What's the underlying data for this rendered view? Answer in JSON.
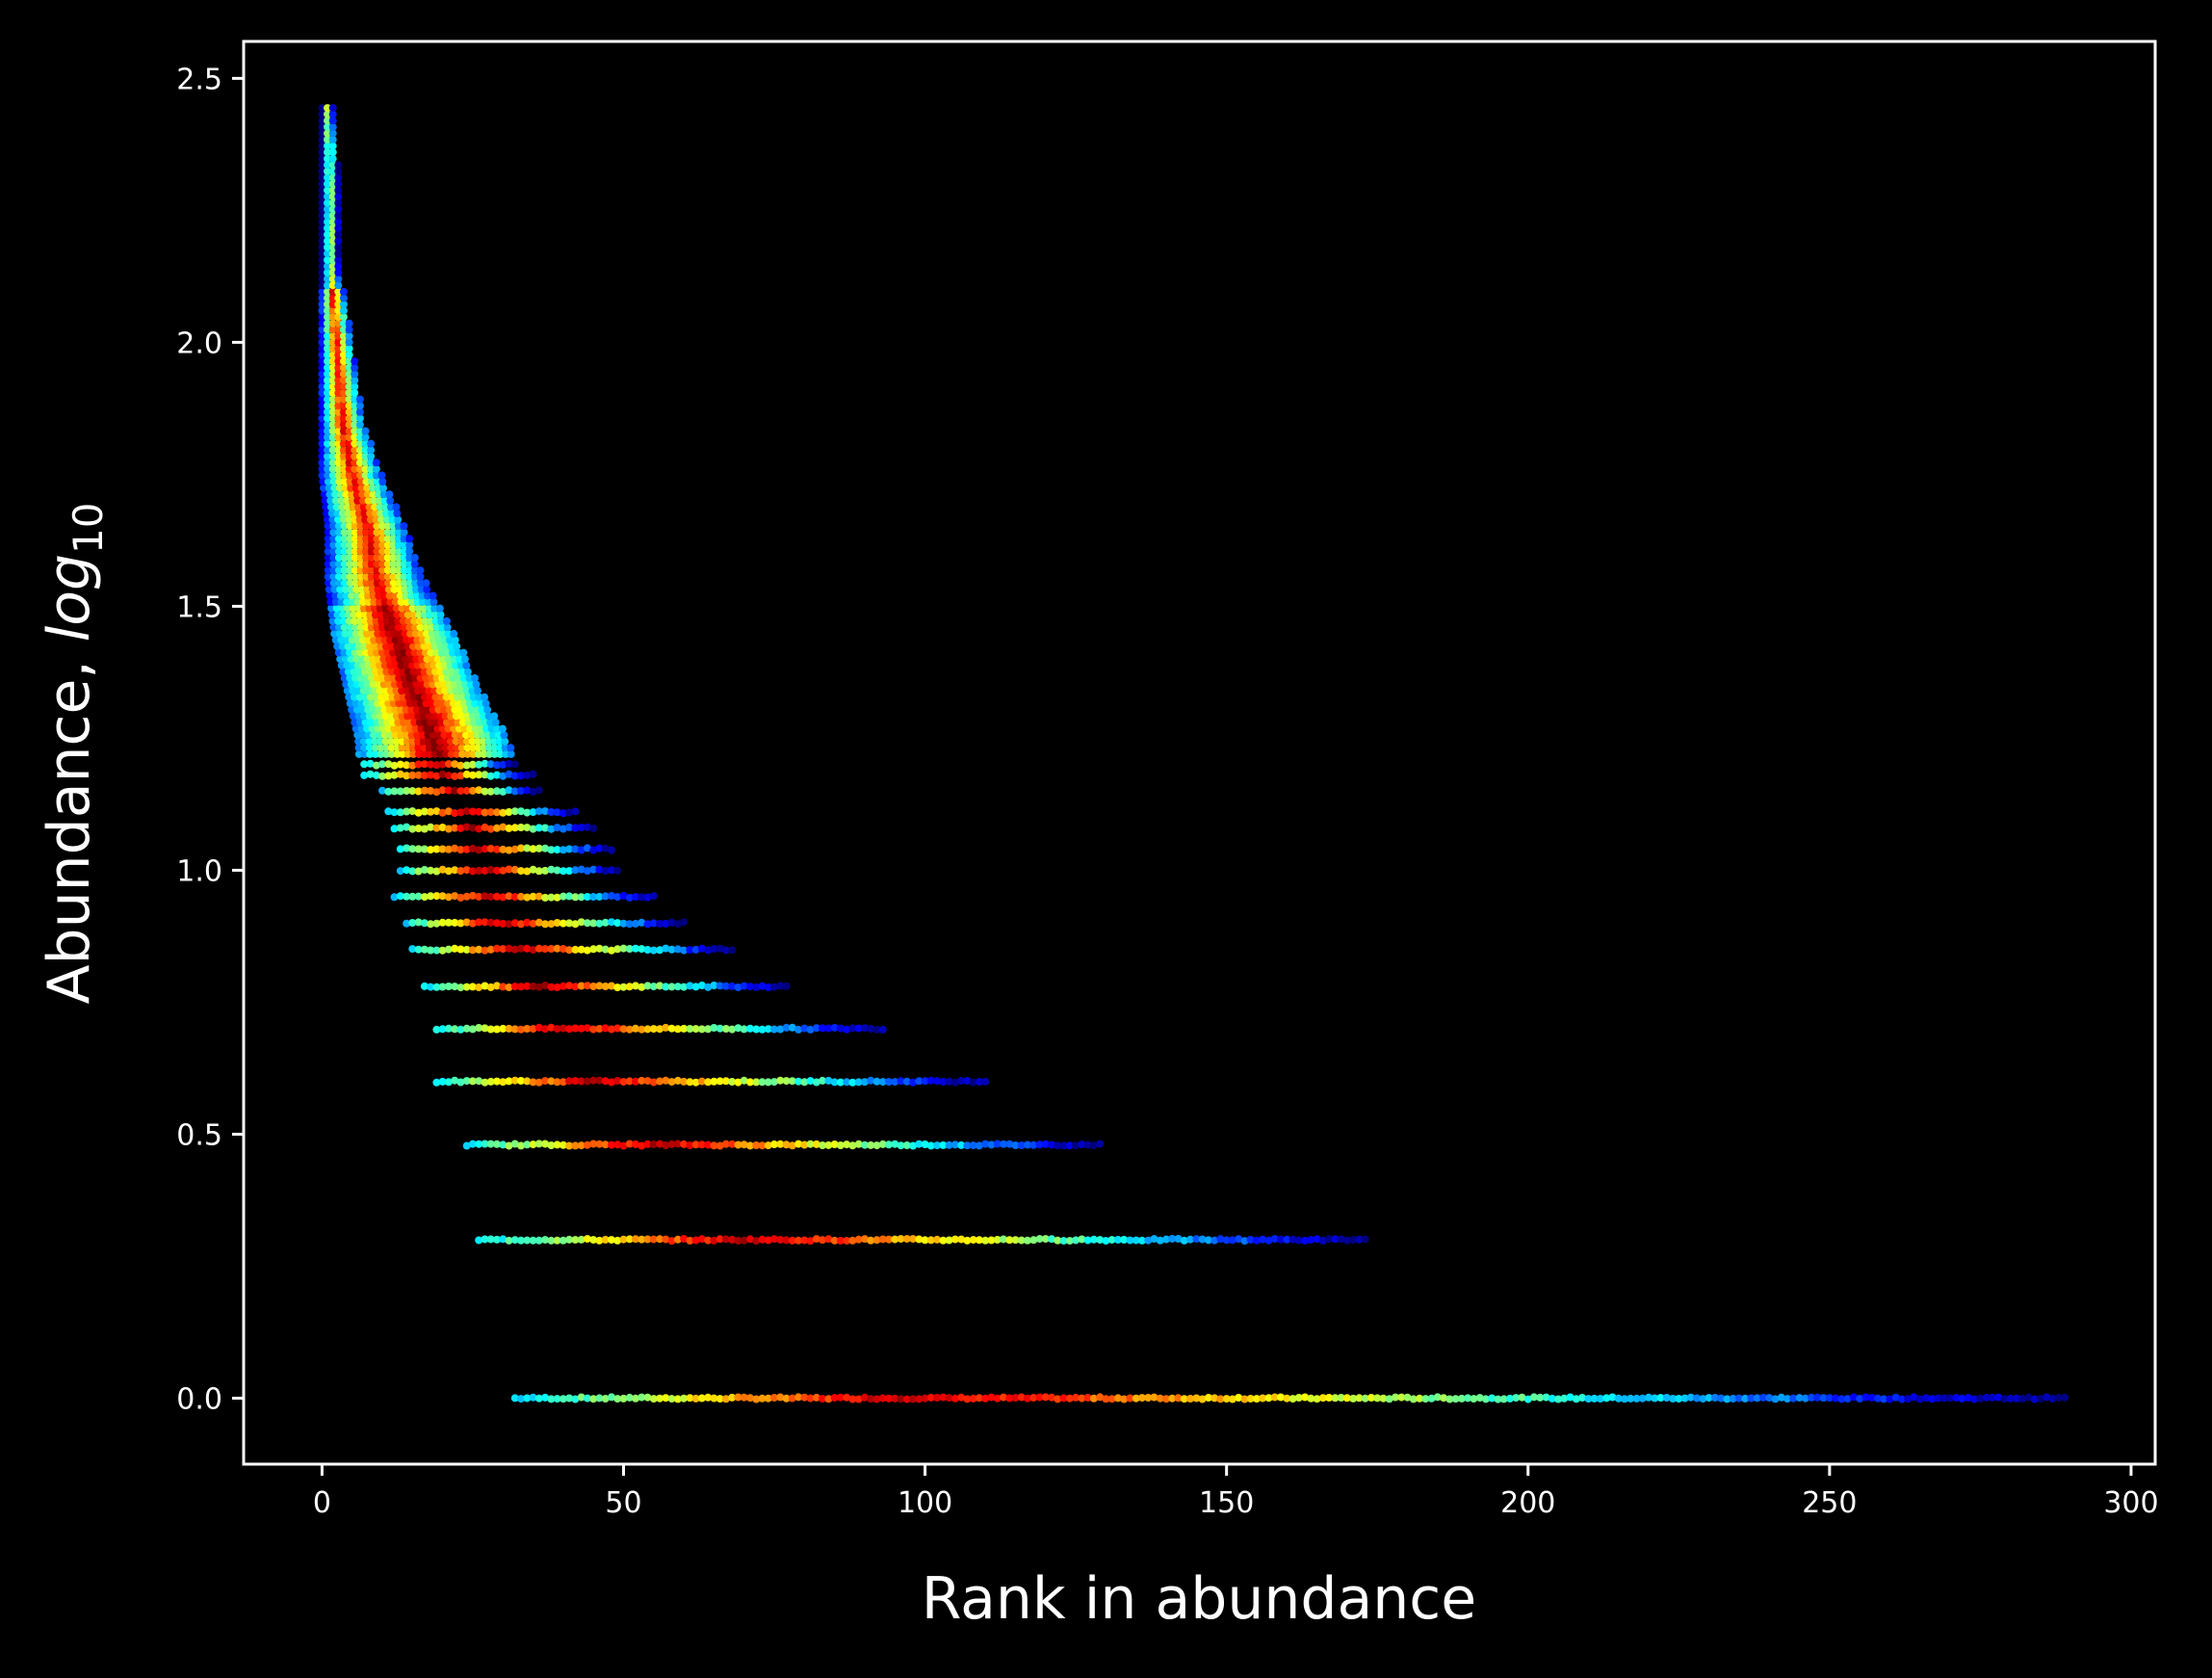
{
  "chart_data": {
    "type": "scatter",
    "title": "",
    "xlabel": "Rank in abundance",
    "ylabel_text": "Abundance, ",
    "ylabel_math": "log",
    "ylabel_sub": "10",
    "xlim": [
      -13,
      304
    ],
    "ylim": [
      -0.125,
      2.57
    ],
    "xticks": [
      0,
      50,
      100,
      150,
      200,
      250,
      300
    ],
    "xtick_labels": [
      "0",
      "50",
      "100",
      "150",
      "200",
      "250",
      "300"
    ],
    "yticks": [
      0.0,
      0.5,
      1.0,
      1.5,
      2.0,
      2.5
    ],
    "ytick_labels": [
      "0.0",
      "0.5",
      "1.0",
      "1.5",
      "2.0",
      "2.5"
    ],
    "grid": false,
    "background": "#000000",
    "colormap": "jet",
    "colormap_stops": [
      "#00007f",
      "#0000ff",
      "#007fff",
      "#00ffff",
      "#7fff7f",
      "#ffff00",
      "#ff7f00",
      "#ff0000",
      "#7f0000"
    ],
    "point_color_meaning": "point density",
    "bands": [
      {
        "y": 0.0,
        "x_start": 32,
        "x_end": 289,
        "peak_x": 95
      },
      {
        "y": 0.3,
        "x_start": 26,
        "x_end": 173,
        "peak_x": 70
      },
      {
        "y": 0.48,
        "x_start": 24,
        "x_end": 129,
        "peak_x": 55
      },
      {
        "y": 0.6,
        "x_start": 19,
        "x_end": 110,
        "peak_x": 45
      },
      {
        "y": 0.7,
        "x_start": 19,
        "x_end": 93,
        "peak_x": 40
      },
      {
        "y": 0.78,
        "x_start": 17,
        "x_end": 77,
        "peak_x": 36
      },
      {
        "y": 0.85,
        "x_start": 15,
        "x_end": 68,
        "peak_x": 33
      },
      {
        "y": 0.9,
        "x_start": 14,
        "x_end": 60,
        "peak_x": 30
      },
      {
        "y": 0.95,
        "x_start": 12,
        "x_end": 55,
        "peak_x": 28
      },
      {
        "y": 1.0,
        "x_start": 13,
        "x_end": 49,
        "peak_x": 27
      },
      {
        "y": 1.04,
        "x_start": 13,
        "x_end": 48,
        "peak_x": 26
      },
      {
        "y": 1.08,
        "x_start": 12,
        "x_end": 45,
        "peak_x": 25
      },
      {
        "y": 1.11,
        "x_start": 11,
        "x_end": 42,
        "peak_x": 24
      },
      {
        "y": 1.15,
        "x_start": 10,
        "x_end": 36,
        "peak_x": 22
      },
      {
        "y": 1.18,
        "x_start": 7,
        "x_end": 35,
        "peak_x": 20
      },
      {
        "y": 1.2,
        "x_start": 7,
        "x_end": 32,
        "peak_x": 19
      }
    ],
    "curve": [
      {
        "y": 2.45,
        "x_min": 0,
        "x_max": 2
      },
      {
        "y": 2.3,
        "x_min": 0,
        "x_max": 3
      },
      {
        "y": 2.15,
        "x_min": 0,
        "x_max": 3
      },
      {
        "y": 2.0,
        "x_min": 0,
        "x_max": 5
      },
      {
        "y": 1.85,
        "x_min": 0,
        "x_max": 7
      },
      {
        "y": 1.75,
        "x_min": 0,
        "x_max": 10
      },
      {
        "y": 1.65,
        "x_min": 1,
        "x_max": 14
      },
      {
        "y": 1.55,
        "x_min": 1,
        "x_max": 17
      },
      {
        "y": 1.45,
        "x_min": 2,
        "x_max": 22
      },
      {
        "y": 1.35,
        "x_min": 4,
        "x_max": 26
      },
      {
        "y": 1.25,
        "x_min": 6,
        "x_max": 31
      }
    ]
  }
}
